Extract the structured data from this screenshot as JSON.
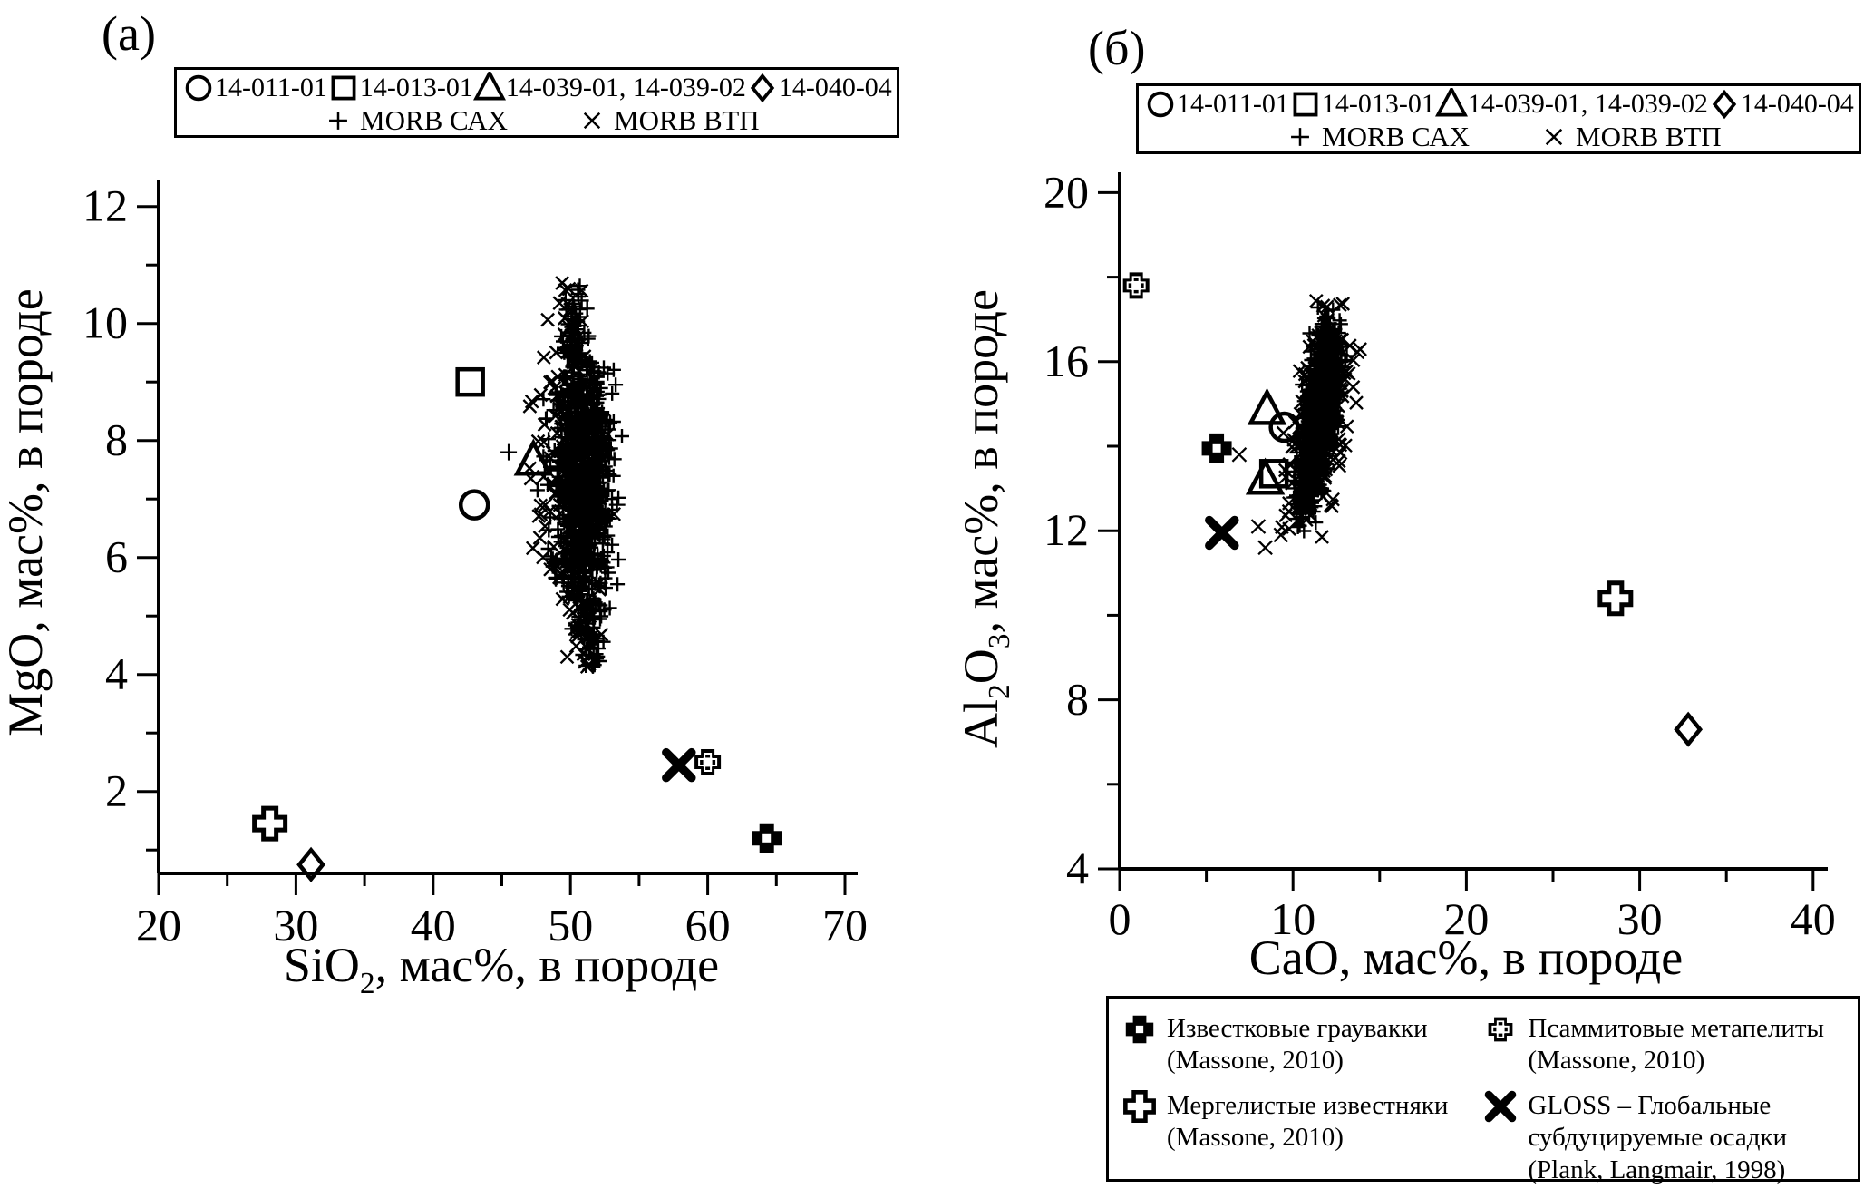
{
  "colors": {
    "ink": "#000000",
    "paper": "#ffffff"
  },
  "panels": {
    "a_label": "(а)",
    "b_label": "(б)"
  },
  "sample_legend": {
    "row1": [
      {
        "marker": "circle",
        "label": "14-011-01"
      },
      {
        "marker": "square",
        "label": "14-013-01"
      },
      {
        "marker": "triangle",
        "label": "14-039-01, 14-039-02"
      },
      {
        "marker": "diamond",
        "label": "14-040-04"
      }
    ],
    "row2": [
      {
        "marker": "plus",
        "label": "MORB САХ"
      },
      {
        "marker": "x",
        "label": "MORB ВТП"
      }
    ]
  },
  "reference_legend": [
    {
      "marker": "solid-cross",
      "lines": [
        "Известковые граувакки",
        "(Massone, 2010)"
      ]
    },
    {
      "marker": "outlined-cross",
      "lines": [
        "Псаммитовые метапелиты",
        "(Massone, 2010)"
      ]
    },
    {
      "marker": "open-cross",
      "lines": [
        "Мергелистые известняки",
        "(Massone, 2010)"
      ]
    },
    {
      "marker": "bold-x",
      "lines": [
        "GLOSS – Глобальные",
        "субдуцируемые осадки",
        "(Plank, Langmair, 1998)"
      ]
    }
  ],
  "chart_data": [
    {
      "type": "scatter",
      "panel": "(а)",
      "title": "",
      "xlabel": "SiO2, мас%, в породе",
      "ylabel": "MgO, мас%, в породе",
      "x_axis": {
        "segments": [
          {
            "t": "SiO"
          },
          {
            "t": "2",
            "sub": true
          },
          {
            "t": ", мас%, в породе"
          }
        ],
        "ticks": [
          20,
          30,
          40,
          50,
          60,
          70
        ],
        "minor_ticks": [
          25,
          35,
          45,
          55,
          65
        ],
        "range": [
          20,
          70.9
        ]
      },
      "y_axis": {
        "segments": [
          {
            "t": "MgO, мас%, в породе"
          }
        ],
        "ticks": [
          2,
          4,
          6,
          8,
          10,
          12
        ],
        "minor_ticks": [
          1,
          3,
          5,
          7,
          9,
          11
        ],
        "range": [
          0.6,
          12.45
        ]
      },
      "samples": [
        {
          "id": "14-011-01",
          "marker": "circle",
          "points": [
            [
              43.0,
              6.9
            ]
          ]
        },
        {
          "id": "14-013-01",
          "marker": "square",
          "points": [
            [
              42.7,
              9.0
            ]
          ]
        },
        {
          "id": "14-039-01, 14-039-02",
          "marker": "triangle",
          "points": [
            [
              47.3,
              7.65
            ]
          ]
        },
        {
          "id": "14-040-04",
          "marker": "diamond",
          "points": [
            [
              31.1,
              0.75
            ]
          ]
        }
      ],
      "references": [
        {
          "id": "Мергелистые известняки",
          "marker": "open-cross",
          "points": [
            [
              28.1,
              1.45
            ]
          ]
        },
        {
          "id": "GLOSS",
          "marker": "bold-x",
          "points": [
            [
              57.9,
              2.45
            ]
          ]
        },
        {
          "id": "Псаммитовые метапелиты",
          "marker": "outlined-cross",
          "points": [
            [
              60.0,
              2.5
            ]
          ]
        },
        {
          "id": "Известковые граувакки",
          "marker": "solid-cross",
          "points": [
            [
              64.3,
              1.2
            ]
          ]
        }
      ],
      "morb_clouds": [
        {
          "id": "MORB САХ",
          "marker": "plus",
          "n": 1000,
          "center": [
            50.8,
            7.35
          ],
          "sigma": [
            1.0,
            1.4
          ],
          "x_range": [
            46.9,
            54.6
          ],
          "y_range": [
            4.05,
            10.65
          ],
          "neck_above": 9.4,
          "neck_x": 49.8,
          "tail_below": 5.3,
          "tail_x": 52.2
        },
        {
          "id": "MORB ВТП",
          "marker": "x",
          "n": 175,
          "center": [
            49.7,
            7.5
          ],
          "sigma": [
            1.15,
            2.0
          ],
          "x_range": [
            46.5,
            53.8
          ],
          "y_range": [
            4.1,
            10.7
          ],
          "neck_above": 9.5,
          "neck_x": 49.4,
          "tail_below": 5.2,
          "tail_x": 52.0
        }
      ],
      "extra_points": [
        {
          "marker": "plus",
          "points": [
            [
              45.5,
              7.8
            ],
            [
              53.4,
              6.9
            ]
          ]
        }
      ]
    },
    {
      "type": "scatter",
      "panel": "(б)",
      "title": "",
      "xlabel": "CaO, мас%, в породе",
      "ylabel": "Al2O3, мас%, в породе",
      "x_axis": {
        "segments": [
          {
            "t": "CaO, мас%, в породе"
          }
        ],
        "ticks": [
          0,
          10,
          20,
          30,
          40
        ],
        "minor_ticks": [
          5,
          15,
          25,
          35
        ],
        "range": [
          0,
          40.9
        ]
      },
      "y_axis": {
        "segments": [
          {
            "t": "Al"
          },
          {
            "t": "2",
            "sub": true
          },
          {
            "t": "O"
          },
          {
            "t": "3",
            "sub": true
          },
          {
            "t": ", мас%, в породе"
          }
        ],
        "ticks": [
          4,
          8,
          12,
          16,
          20
        ],
        "minor_ticks": [
          6,
          10,
          14,
          18
        ],
        "range": [
          4,
          20.5
        ]
      },
      "samples": [
        {
          "id": "14-011-01",
          "marker": "circle",
          "points": [
            [
              9.5,
              14.45
            ]
          ]
        },
        {
          "id": "14-013-01",
          "marker": "square",
          "points": [
            [
              8.9,
              13.35
            ]
          ]
        },
        {
          "id": "14-039-01, 14-039-02",
          "marker": "triangle",
          "points": [
            [
              8.5,
              14.85
            ],
            [
              8.4,
              13.2
            ]
          ]
        },
        {
          "id": "14-040-04",
          "marker": "diamond",
          "points": [
            [
              32.8,
              7.3
            ]
          ]
        }
      ],
      "references": [
        {
          "id": "Псаммитовые метапелиты",
          "marker": "outlined-cross",
          "points": [
            [
              0.95,
              17.8
            ]
          ]
        },
        {
          "id": "Известковые граувакки",
          "marker": "solid-cross",
          "points": [
            [
              5.6,
              13.95
            ]
          ]
        },
        {
          "id": "GLOSS",
          "marker": "bold-x",
          "points": [
            [
              5.9,
              11.95
            ]
          ]
        },
        {
          "id": "Мергелистые известняки",
          "marker": "open-cross",
          "points": [
            [
              28.6,
              10.4
            ]
          ]
        }
      ],
      "morb_clouds": [
        {
          "id": "MORB САХ",
          "marker": "plus",
          "n": 900,
          "curve": {
            "x0": 10.25,
            "x1": 3.5,
            "x2": -1.55,
            "y0": 12.2,
            "y1": 5.0
          },
          "sigma": [
            0.42,
            0.4
          ],
          "x_range": [
            9.7,
            13.5
          ],
          "y_range": [
            11.95,
            17.3
          ]
        },
        {
          "id": "MORB ВТП",
          "marker": "x",
          "n": 230,
          "curve": {
            "x0": 10.25,
            "x1": 3.5,
            "x2": -1.55,
            "y0": 12.2,
            "y1": 5.0
          },
          "sigma": [
            0.8,
            0.7
          ],
          "x_range": [
            9.2,
            13.9
          ],
          "y_range": [
            11.8,
            17.45
          ]
        }
      ],
      "extra_points": [
        {
          "marker": "x",
          "points": [
            [
              6.9,
              13.8
            ],
            [
              8.0,
              12.1
            ],
            [
              8.4,
              11.6
            ],
            [
              9.3,
              11.9
            ]
          ]
        }
      ]
    }
  ]
}
